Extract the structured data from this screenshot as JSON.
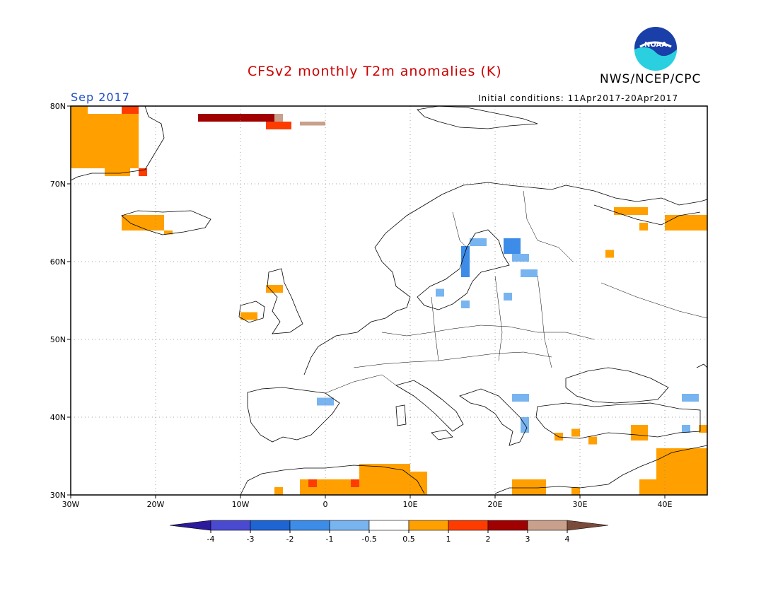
{
  "header": {
    "title": "CFSv2 monthly T2m anomalies (K)",
    "agency": "NWS/NCEP/CPC",
    "logo_text": "NOAA",
    "month": "Sep 2017",
    "initial_conditions": "Initial conditions: 11Apr2017-20Apr2017"
  },
  "map": {
    "lon_range": [
      -30,
      45
    ],
    "lat_range": [
      30,
      80
    ],
    "lon_ticks": [
      {
        "value": -30,
        "label": "30W"
      },
      {
        "value": -20,
        "label": "20W"
      },
      {
        "value": -10,
        "label": "10W"
      },
      {
        "value": 0,
        "label": "0"
      },
      {
        "value": 10,
        "label": "10E"
      },
      {
        "value": 20,
        "label": "20E"
      },
      {
        "value": 30,
        "label": "30E"
      },
      {
        "value": 40,
        "label": "40E"
      }
    ],
    "lat_ticks": [
      {
        "value": 30,
        "label": "30N"
      },
      {
        "value": 40,
        "label": "40N"
      },
      {
        "value": 50,
        "label": "50N"
      },
      {
        "value": 60,
        "label": "60N"
      },
      {
        "value": 70,
        "label": "70N"
      },
      {
        "value": 80,
        "label": "80N"
      }
    ],
    "grid": "dotted"
  },
  "legend": {
    "bins": [
      {
        "color": "#2b1b9c"
      },
      {
        "color": "#4a4ad0"
      },
      {
        "color": "#1e64d2"
      },
      {
        "color": "#3c8ce8"
      },
      {
        "color": "#78b4f0"
      },
      {
        "color": "#ffffff"
      },
      {
        "color": "#ffa000"
      },
      {
        "color": "#ff3c00"
      },
      {
        "color": "#a00000"
      },
      {
        "color": "#c8a08c"
      },
      {
        "color": "#7a4a3a"
      }
    ],
    "labels": [
      "-4",
      "-3",
      "-2",
      "-1",
      "-0.5",
      "0.5",
      "1",
      "2",
      "3",
      "4"
    ]
  },
  "anomaly_cells": [
    {
      "lon": -30,
      "lat": 72,
      "w": 2,
      "h": 8,
      "color": "#ffa000"
    },
    {
      "lon": -28,
      "lat": 72,
      "w": 6,
      "h": 7,
      "color": "#ffa000"
    },
    {
      "lon": -24,
      "lat": 79,
      "w": 2,
      "h": 1,
      "color": "#ff3c00"
    },
    {
      "lon": -26,
      "lat": 71,
      "w": 3,
      "h": 1,
      "color": "#ffa000"
    },
    {
      "lon": -22,
      "lat": 71,
      "w": 1,
      "h": 1,
      "color": "#ff3c00"
    },
    {
      "lon": -24,
      "lat": 64,
      "w": 5,
      "h": 2,
      "color": "#ffa000"
    },
    {
      "lon": -19,
      "lat": 63.5,
      "w": 1,
      "h": 0.5,
      "color": "#ffa000"
    },
    {
      "lon": -15,
      "lat": 78,
      "w": 10,
      "h": 1,
      "color": "#a00000"
    },
    {
      "lon": -7,
      "lat": 77,
      "w": 3,
      "h": 1,
      "color": "#ff3c00"
    },
    {
      "lon": -6,
      "lat": 78,
      "w": 1,
      "h": 1,
      "color": "#c8a08c"
    },
    {
      "lon": -3,
      "lat": 77.5,
      "w": 3,
      "h": 0.5,
      "color": "#c8a08c"
    },
    {
      "lon": -10,
      "lat": 52.5,
      "w": 2,
      "h": 1,
      "color": "#ffa000"
    },
    {
      "lon": -7,
      "lat": 56,
      "w": 2,
      "h": 1,
      "color": "#ffa000"
    },
    {
      "lon": 16,
      "lat": 58,
      "w": 1,
      "h": 4,
      "color": "#3c8ce8"
    },
    {
      "lon": 17,
      "lat": 62,
      "w": 2,
      "h": 1,
      "color": "#78b4f0"
    },
    {
      "lon": 21,
      "lat": 61,
      "w": 2,
      "h": 2,
      "color": "#3c8ce8"
    },
    {
      "lon": 22,
      "lat": 60,
      "w": 2,
      "h": 1,
      "color": "#78b4f0"
    },
    {
      "lon": 23,
      "lat": 58,
      "w": 2,
      "h": 1,
      "color": "#78b4f0"
    },
    {
      "lon": 13,
      "lat": 55.5,
      "w": 1,
      "h": 1,
      "color": "#78b4f0"
    },
    {
      "lon": 16,
      "lat": 54,
      "w": 1,
      "h": 1,
      "color": "#78b4f0"
    },
    {
      "lon": 21,
      "lat": 55,
      "w": 1,
      "h": 1,
      "color": "#78b4f0"
    },
    {
      "lon": -1,
      "lat": 41.5,
      "w": 2,
      "h": 1,
      "color": "#78b4f0"
    },
    {
      "lon": 22,
      "lat": 42,
      "w": 2,
      "h": 1,
      "color": "#78b4f0"
    },
    {
      "lon": 23,
      "lat": 38,
      "w": 1,
      "h": 2,
      "color": "#78b4f0"
    },
    {
      "lon": 42,
      "lat": 42,
      "w": 2,
      "h": 1,
      "color": "#78b4f0"
    },
    {
      "lon": 42,
      "lat": 38,
      "w": 1,
      "h": 1,
      "color": "#78b4f0"
    },
    {
      "lon": 40,
      "lat": 64,
      "w": 5,
      "h": 2,
      "color": "#ffa000"
    },
    {
      "lon": 34,
      "lat": 66,
      "w": 4,
      "h": 1,
      "color": "#ffa000"
    },
    {
      "lon": 37,
      "lat": 64,
      "w": 1,
      "h": 1,
      "color": "#ffa000"
    },
    {
      "lon": 33,
      "lat": 60.5,
      "w": 1,
      "h": 1,
      "color": "#ffa000"
    },
    {
      "lon": 27,
      "lat": 37,
      "w": 1,
      "h": 1,
      "color": "#ffa000"
    },
    {
      "lon": 29,
      "lat": 37.5,
      "w": 1,
      "h": 1,
      "color": "#ffa000"
    },
    {
      "lon": 31,
      "lat": 36.5,
      "w": 1,
      "h": 1,
      "color": "#ffa000"
    },
    {
      "lon": 36,
      "lat": 37,
      "w": 2,
      "h": 2,
      "color": "#ffa000"
    },
    {
      "lon": 39,
      "lat": 30,
      "w": 6,
      "h": 6,
      "color": "#ffa000"
    },
    {
      "lon": 37,
      "lat": 30,
      "w": 2,
      "h": 2,
      "color": "#ffa000"
    },
    {
      "lon": 44,
      "lat": 38,
      "w": 1,
      "h": 1,
      "color": "#ffa000"
    },
    {
      "lon": -6,
      "lat": 30,
      "w": 1,
      "h": 1,
      "color": "#ffa000"
    },
    {
      "lon": -3,
      "lat": 30,
      "w": 7,
      "h": 2,
      "color": "#ffa000"
    },
    {
      "lon": 4,
      "lat": 30,
      "w": 6,
      "h": 4,
      "color": "#ffa000"
    },
    {
      "lon": 9,
      "lat": 30,
      "w": 3,
      "h": 3,
      "color": "#ffa000"
    },
    {
      "lon": -2,
      "lat": 31,
      "w": 1,
      "h": 1,
      "color": "#ff3c00"
    },
    {
      "lon": 3,
      "lat": 31,
      "w": 1,
      "h": 1,
      "color": "#ff3c00"
    },
    {
      "lon": 22,
      "lat": 30,
      "w": 4,
      "h": 2,
      "color": "#ffa000"
    },
    {
      "lon": 29,
      "lat": 30,
      "w": 1,
      "h": 1,
      "color": "#ffa000"
    }
  ]
}
